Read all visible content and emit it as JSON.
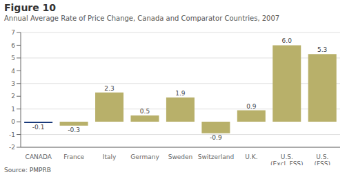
{
  "chart_data": {
    "type": "bar",
    "title": "Figure 10",
    "subtitle": "Annual Average Rate of Price Change, Canada and Comparator Countries, 2007",
    "source": "Source: PMPRB",
    "categories": [
      "CANADA",
      "France",
      "Italy",
      "Germany",
      "Sweden",
      "Switzerland",
      "U.K.",
      "U.S.\n(Excl. FSS)",
      "U.S.\n(FSS)"
    ],
    "values": [
      -0.1,
      -0.3,
      2.3,
      0.5,
      1.9,
      -0.9,
      0.9,
      6.0,
      5.3
    ],
    "value_labels": [
      "-0.1",
      "-0.3",
      "2.3",
      "0.5",
      "1.9",
      "-0.9",
      "0.9",
      "6.0",
      "5.3"
    ],
    "colors": [
      "#1a3a7a",
      "#b8b06a",
      "#b8b06a",
      "#b8b06a",
      "#b8b06a",
      "#b8b06a",
      "#b8b06a",
      "#b8b06a",
      "#b8b06a"
    ],
    "ylim": [
      -2,
      7
    ],
    "yticks": [
      -2,
      -1,
      0,
      1,
      2,
      3,
      4,
      5,
      6,
      7
    ],
    "grid": true,
    "data_labels": true
  }
}
